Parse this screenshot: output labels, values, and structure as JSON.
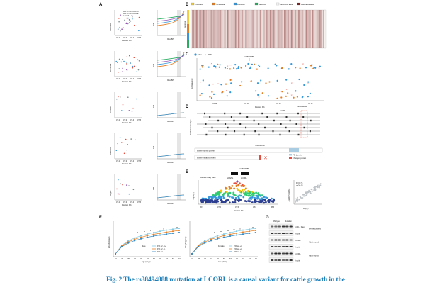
{
  "panels": {
    "A": {
      "label": "A",
      "rows": [
        {
          "y_label": "Charolais",
          "legend": [
            "Ala→Pro/4b/c=Pro",
            "Ala→Pro/4b/c=Ala",
            "Lot A/A"
          ],
          "x_ticks": [
            "37.2",
            "37.3",
            "37.4",
            "37.5"
          ],
          "x_label": "Position Mb",
          "curve_x": "Ibce BP",
          "curve_y": "Diff"
        },
        {
          "y_label": "Simmental",
          "x_ticks": [
            "37.2",
            "37.3",
            "37.4",
            "37.5"
          ],
          "x_label": "Position Mb",
          "curve_x": "Ibce BP",
          "curve_y": "Diff"
        },
        {
          "y_label": "Limousin",
          "x_ticks": [
            "37.2",
            "37.3",
            "37.4",
            "37.5"
          ],
          "x_label": "Position Mb",
          "curve_x": "Ibce BP",
          "curve_y": "Diff"
        },
        {
          "y_label": "Hereford",
          "x_ticks": [
            "37.2",
            "37.3",
            "37.4",
            "37.5"
          ],
          "x_label": "Position Mb",
          "curve_x": "Ibce BP",
          "curve_y": "Diff"
        },
        {
          "y_label": "Angus",
          "x_ticks": [
            "37.2",
            "37.3",
            "37.4",
            "37.5"
          ],
          "x_label": "Position Mb",
          "curve_x": "Ibce BP",
          "curve_y": "Diff"
        }
      ]
    },
    "B": {
      "label": "B",
      "legend": [
        "Charolais",
        "Simmental",
        "Limousin",
        "Hereford",
        "Reference allele",
        "Alternative allele"
      ],
      "legend_colors": [
        "#f4d03f",
        "#e67e22",
        "#3498db",
        "#27ae60",
        "#ffffff",
        "#7b1f1f"
      ],
      "group_labels": [
        "European",
        "Chinese"
      ]
    },
    "C": {
      "label": "C",
      "legend": [
        "SNV",
        "INDEL"
      ],
      "annotation": "rs38494888",
      "x_ticks": [
        "37.38",
        "37.40",
        "37.42",
        "37.44"
      ],
      "x_label": "Position Mb",
      "y_label": "Δ Frequency"
    },
    "D": {
      "label": "D",
      "gene": "LCORL",
      "annotation": "rs38494888",
      "tracks": [
        "bovine normal protein",
        "bovine mutated protein"
      ],
      "legend": [
        "PIF domain",
        "Changed protein"
      ],
      "side_label": "PRKCE transcripts"
    },
    "E": {
      "label": "E",
      "genes": [
        "NCAPG",
        "LCORL"
      ],
      "annotation": "rs38494888",
      "title": "Average Daily Gain",
      "x_label": "Position Mb",
      "y_label": "-log10(P)",
      "x_ticks": [
        "36.5",
        "37.0",
        "37.5",
        "38.0",
        "38.5"
      ],
      "scatter_x": "LD(r2)",
      "scatter_y": "-log10(P) GWAS",
      "scatter_stats": [
        "R²=0.76",
        "p=2e-16"
      ]
    },
    "F": {
      "label": "F",
      "left": {
        "y_label": "Weight (gram)",
        "x_label": "Age (days)",
        "sex": "Male",
        "legend": [
          "P.R.L2 +/+",
          "P.R.L2 +/-",
          "P.R.L2 -/-"
        ],
        "x_ticks": [
          "21",
          "28",
          "35",
          "42",
          "49",
          "56",
          "63",
          "70",
          "77",
          "84",
          "91"
        ],
        "stars": [
          "*",
          "**",
          "*",
          "*",
          "**",
          "**",
          "***"
        ]
      },
      "right": {
        "y_label": "Weight (gram)",
        "x_label": "Age (days)",
        "sex": "Female",
        "legend": [
          "P.R.L2 +/+",
          "P.R.L2 +/-",
          "P.R.L2 -/-"
        ],
        "x_ticks": [
          "21",
          "28",
          "35",
          "42",
          "49",
          "56",
          "63",
          "70",
          "77",
          "84",
          "91"
        ],
        "stars": [
          "*",
          "***",
          "***",
          "***",
          "**",
          "**",
          "**"
        ]
      },
      "series_colors": [
        "#7ec8e3",
        "#e67e22",
        "#2e86c1"
      ]
    },
    "G": {
      "label": "G",
      "columns": [
        "Wildtype",
        "Mutation"
      ],
      "rows": [
        {
          "band": "LCRL / Flag",
          "group": "Whole Embryo"
        },
        {
          "band": "β-actin",
          "group": ""
        },
        {
          "band": "LCORL",
          "group": "Adult muscle"
        },
        {
          "band": "β-actin",
          "group": ""
        },
        {
          "band": "LCORL",
          "group": "Adult thymus"
        },
        {
          "band": "β-actin",
          "group": ""
        }
      ]
    }
  },
  "caption": "Fig. 2 The rs38494888 mutation at LCORL is a causal variant for cattle growth in the"
}
